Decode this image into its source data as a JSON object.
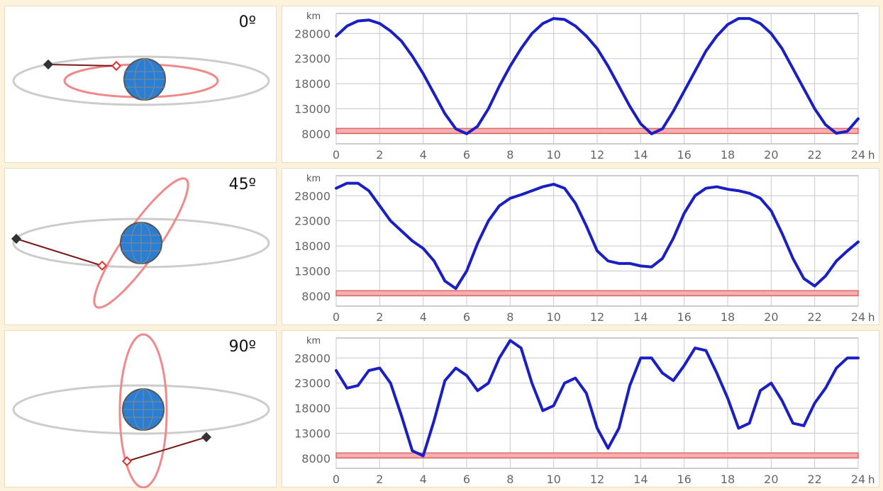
{
  "colors": {
    "page_bg": "#fdf3dc",
    "curve": "#1a1fc4",
    "threshold": "#e06666",
    "equator_orbit": "#cccccc",
    "satellite_orbit": "#f08a8a",
    "earth": "#2a7fd4"
  },
  "rows": [
    {
      "angle": "0º"
    },
    {
      "angle": "45º"
    },
    {
      "angle": "90º"
    }
  ],
  "chart_data": [
    {
      "type": "line",
      "title": "",
      "xlabel": "h",
      "ylabel": "km",
      "xlim": [
        0,
        24
      ],
      "ylim": [
        6000,
        32000
      ],
      "xticks": [
        "0",
        "2",
        "4",
        "6",
        "8",
        "10",
        "12",
        "14",
        "16",
        "18",
        "20",
        "22",
        "24"
      ],
      "yticks": [
        "8000",
        "13000",
        "18000",
        "23000",
        "28000"
      ],
      "grid": true,
      "threshold": 8500,
      "series": [
        {
          "x": [
            0,
            0.5,
            1,
            1.5,
            2,
            2.5,
            3,
            3.5,
            4,
            4.5,
            5,
            5.5,
            6,
            6.5,
            7,
            7.5,
            8,
            8.5,
            9,
            9.5,
            10,
            10.5,
            11,
            11.5,
            12,
            12.5,
            13,
            13.5,
            14,
            14.5,
            15,
            15.5,
            16,
            16.5,
            17,
            17.5,
            18,
            18.5,
            19,
            19.5,
            20,
            20.5,
            21,
            21.5,
            22,
            22.5,
            23,
            23.5,
            24
          ],
          "y": [
            27500,
            29500,
            30500,
            30700,
            30000,
            28500,
            26500,
            23500,
            20000,
            16000,
            12000,
            9000,
            8000,
            9500,
            13000,
            17500,
            21500,
            25000,
            28000,
            30000,
            31000,
            30800,
            29500,
            27500,
            25000,
            21500,
            17500,
            13500,
            10000,
            8000,
            9000,
            12500,
            16500,
            20500,
            24500,
            27500,
            29800,
            31000,
            31000,
            30000,
            28000,
            25000,
            21000,
            17000,
            13000,
            9800,
            8100,
            8500,
            11000
          ]
        }
      ]
    },
    {
      "type": "line",
      "title": "",
      "xlabel": "h",
      "ylabel": "km",
      "xlim": [
        0,
        24
      ],
      "ylim": [
        6000,
        32000
      ],
      "xticks": [
        "0",
        "2",
        "4",
        "6",
        "8",
        "10",
        "12",
        "14",
        "16",
        "18",
        "20",
        "22",
        "24"
      ],
      "yticks": [
        "8000",
        "13000",
        "18000",
        "23000",
        "28000"
      ],
      "grid": true,
      "threshold": 8500,
      "series": [
        {
          "x": [
            0,
            0.5,
            1,
            1.5,
            2,
            2.5,
            3,
            3.5,
            4,
            4.5,
            5,
            5.5,
            6,
            6.5,
            7,
            7.5,
            8,
            8.5,
            9,
            9.5,
            10,
            10.5,
            11,
            11.5,
            12,
            12.5,
            13,
            13.5,
            14,
            14.5,
            15,
            15.5,
            16,
            16.5,
            17,
            17.5,
            18,
            18.5,
            19,
            19.5,
            20,
            20.5,
            21,
            21.5,
            22,
            22.5,
            23,
            23.5,
            24
          ],
          "y": [
            29500,
            30500,
            30500,
            29000,
            26000,
            23000,
            21000,
            19000,
            17500,
            15000,
            11000,
            9500,
            13000,
            18500,
            23000,
            26000,
            27500,
            28200,
            29000,
            29800,
            30300,
            29500,
            26500,
            22000,
            17000,
            15000,
            14500,
            14500,
            14000,
            13800,
            15500,
            19500,
            24500,
            28000,
            29500,
            29800,
            29300,
            29000,
            28500,
            27500,
            25000,
            20500,
            15500,
            11500,
            10000,
            12000,
            15000,
            17000,
            18800
          ]
        }
      ]
    },
    {
      "type": "line",
      "title": "",
      "xlabel": "h",
      "ylabel": "km",
      "xlim": [
        0,
        24
      ],
      "ylim": [
        6000,
        32000
      ],
      "xticks": [
        "0",
        "2",
        "4",
        "6",
        "8",
        "10",
        "12",
        "14",
        "16",
        "18",
        "20",
        "22",
        "24"
      ],
      "yticks": [
        "8000",
        "13000",
        "18000",
        "23000",
        "28000"
      ],
      "grid": true,
      "threshold": 8500,
      "series": [
        {
          "x": [
            0,
            0.5,
            1,
            1.5,
            2,
            2.5,
            3,
            3.5,
            4,
            4.5,
            5,
            5.5,
            6,
            6.5,
            7,
            7.5,
            8,
            8.5,
            9,
            9.5,
            10,
            10.5,
            11,
            11.5,
            12,
            12.5,
            13,
            13.5,
            14,
            14.5,
            15,
            15.5,
            16,
            16.5,
            17,
            17.5,
            18,
            18.5,
            19,
            19.5,
            20,
            20.5,
            21,
            21.5,
            22,
            22.5,
            23,
            23.5,
            24
          ],
          "y": [
            25500,
            22000,
            22500,
            25500,
            26000,
            23000,
            16500,
            9500,
            8500,
            15500,
            23500,
            26000,
            24500,
            21500,
            23000,
            28000,
            31500,
            30000,
            23000,
            17500,
            18500,
            23000,
            24000,
            21000,
            14000,
            10000,
            14000,
            22500,
            28000,
            28000,
            25000,
            23500,
            26500,
            30000,
            29500,
            25000,
            20000,
            14000,
            15000,
            21500,
            23000,
            19500,
            15000,
            14500,
            19000,
            22000,
            26000,
            28000,
            28000
          ]
        }
      ]
    }
  ]
}
